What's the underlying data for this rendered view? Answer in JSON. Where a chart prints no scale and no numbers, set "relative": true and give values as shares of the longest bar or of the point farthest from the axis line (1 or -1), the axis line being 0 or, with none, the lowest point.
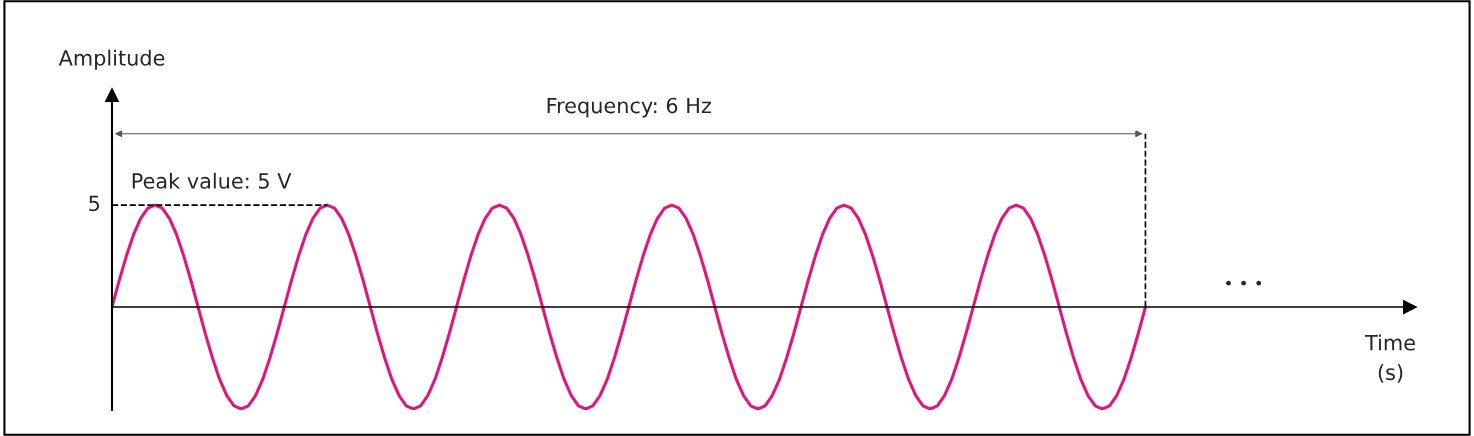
{
  "chart_data": {
    "type": "line",
    "relative": true,
    "marker": "none",
    "line_style": "solid",
    "categories": [
      null,
      null,
      null,
      null,
      null,
      null,
      null,
      null,
      null,
      null,
      null,
      null,
      null,
      null,
      null,
      null,
      null,
      null,
      null,
      null,
      null,
      null,
      null,
      null,
      null,
      null,
      null,
      null,
      null,
      null,
      null,
      null,
      null,
      null,
      null,
      null,
      null,
      null,
      null,
      null,
      null,
      null,
      null,
      null,
      null,
      null,
      null,
      null,
      null,
      null,
      null,
      null,
      null,
      null,
      null,
      null,
      null,
      null,
      null,
      null,
      null,
      null,
      null,
      null,
      null,
      null,
      null,
      null,
      null,
      null,
      null,
      null,
      null,
      null,
      null,
      null,
      null,
      null,
      null,
      null,
      null,
      null,
      null,
      null,
      null,
      null,
      null,
      null,
      null,
      null,
      null,
      null,
      null,
      null,
      null,
      null,
      null,
      null,
      null,
      null,
      null,
      null,
      null,
      null,
      null,
      null,
      null,
      null,
      null,
      null,
      null,
      null,
      null,
      null,
      null,
      null,
      null,
      null,
      null,
      null,
      null,
      null,
      null,
      null,
      null,
      null,
      null,
      null,
      null,
      null,
      null,
      null,
      null,
      null,
      null,
      null,
      null,
      null,
      null,
      null,
      null,
      null,
      null,
      null,
      null
    ],
    "series": [
      {
        "color": "#e0157f",
        "values": [
          0,
          0.26,
          0.5,
          0.71,
          0.87,
          0.97,
          1,
          0.97,
          0.87,
          0.71,
          0.5,
          0.26,
          0,
          -0.26,
          -0.5,
          -0.71,
          -0.87,
          -0.97,
          -1,
          -0.97,
          -0.87,
          -0.71,
          -0.5,
          -0.26,
          0,
          0.26,
          0.5,
          0.71,
          0.87,
          0.97,
          1,
          0.97,
          0.87,
          0.71,
          0.5,
          0.26,
          0,
          -0.26,
          -0.5,
          -0.71,
          -0.87,
          -0.97,
          -1,
          -0.97,
          -0.87,
          -0.71,
          -0.5,
          -0.26,
          0,
          0.26,
          0.5,
          0.71,
          0.87,
          0.97,
          1,
          0.97,
          0.87,
          0.71,
          0.5,
          0.26,
          0,
          -0.26,
          -0.5,
          -0.71,
          -0.87,
          -0.97,
          -1,
          -0.97,
          -0.87,
          -0.71,
          -0.5,
          -0.26,
          0,
          0.26,
          0.5,
          0.71,
          0.87,
          0.97,
          1,
          0.97,
          0.87,
          0.71,
          0.5,
          0.26,
          0,
          -0.26,
          -0.5,
          -0.71,
          -0.87,
          -0.97,
          -1,
          -0.97,
          -0.87,
          -0.71,
          -0.5,
          -0.26,
          0,
          0.26,
          0.5,
          0.71,
          0.87,
          0.97,
          1,
          0.97,
          0.87,
          0.71,
          0.5,
          0.26,
          0,
          -0.26,
          -0.5,
          -0.71,
          -0.87,
          -0.97,
          -1,
          -0.97,
          -0.87,
          -0.71,
          -0.5,
          -0.26,
          0,
          0.26,
          0.5,
          0.71,
          0.87,
          0.97,
          1,
          0.97,
          0.87,
          0.71,
          0.5,
          0.26,
          0,
          -0.26,
          -0.5,
          -0.71,
          -0.87,
          -0.97,
          -1,
          -0.97,
          -0.87,
          -0.71,
          -0.5,
          -0.26,
          0
        ]
      }
    ],
    "annotations": [
      "Frequency: 6 Hz",
      "Peak value: 5 V",
      "• • •",
      "5",
      "Amplitude",
      "Time\n(s)"
    ]
  }
}
